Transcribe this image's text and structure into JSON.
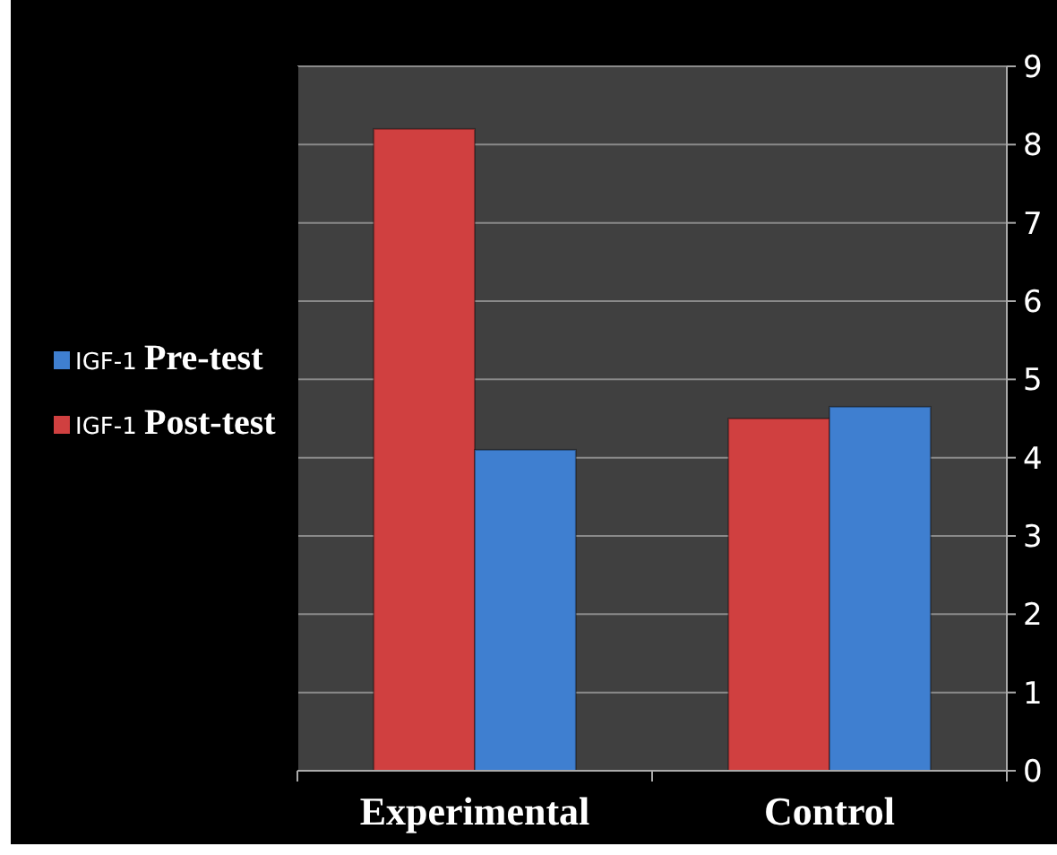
{
  "chart_data": {
    "type": "bar",
    "categories": [
      "Experimental",
      "Control"
    ],
    "series": [
      {
        "name": "IGF-1 Post-test",
        "color": "#d04040",
        "values": [
          8.2,
          4.5
        ]
      },
      {
        "name": "IGF-1 Pre-test",
        "color": "#3f7fd0",
        "values": [
          4.1,
          4.65
        ]
      }
    ],
    "ylim": [
      0,
      9
    ],
    "yticks": [
      0,
      1,
      2,
      3,
      4,
      5,
      6,
      7,
      8,
      9
    ],
    "grid": "y",
    "legend": "left"
  }
}
